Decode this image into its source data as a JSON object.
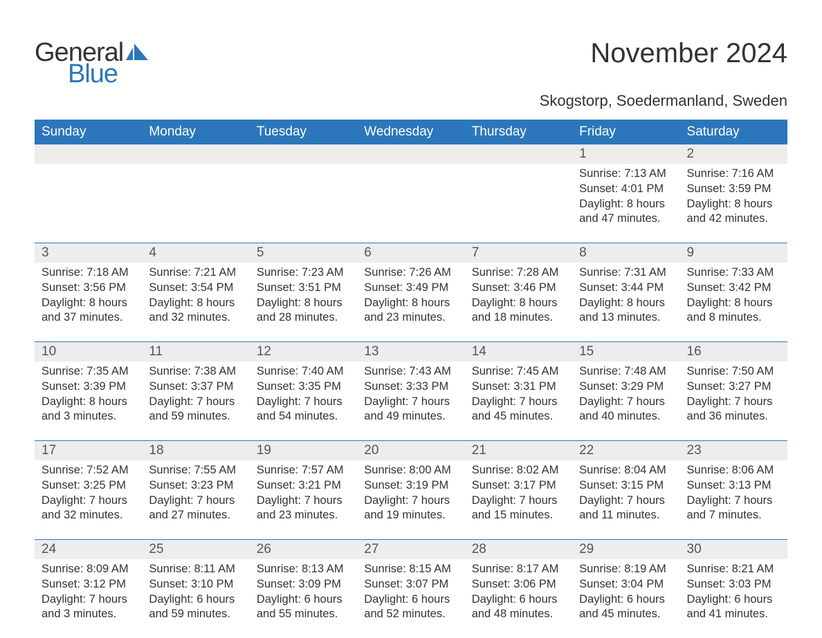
{
  "brand": {
    "text1": "General",
    "text2": "Blue",
    "icon_color": "#2c77bb"
  },
  "title": "November 2024",
  "subtitle": "Skogstorp, Soedermanland, Sweden",
  "colors": {
    "header_bg": "#2c77bb",
    "header_text": "#ffffff",
    "daynum_bg": "#ededed",
    "body_text": "#333333",
    "page_bg": "#ffffff",
    "row_border": "#2c77bb"
  },
  "fontsizes": {
    "title": 40,
    "subtitle": 22,
    "dow": 19,
    "daynum": 19,
    "dayinfo": 16.5,
    "logo": 38
  },
  "dow": [
    "Sunday",
    "Monday",
    "Tuesday",
    "Wednesday",
    "Thursday",
    "Friday",
    "Saturday"
  ],
  "weeks": [
    [
      {
        "n": "",
        "sunrise": "",
        "sunset": "",
        "daylight1": "",
        "daylight2": ""
      },
      {
        "n": "",
        "sunrise": "",
        "sunset": "",
        "daylight1": "",
        "daylight2": ""
      },
      {
        "n": "",
        "sunrise": "",
        "sunset": "",
        "daylight1": "",
        "daylight2": ""
      },
      {
        "n": "",
        "sunrise": "",
        "sunset": "",
        "daylight1": "",
        "daylight2": ""
      },
      {
        "n": "",
        "sunrise": "",
        "sunset": "",
        "daylight1": "",
        "daylight2": ""
      },
      {
        "n": "1",
        "sunrise": "Sunrise: 7:13 AM",
        "sunset": "Sunset: 4:01 PM",
        "daylight1": "Daylight: 8 hours",
        "daylight2": "and 47 minutes."
      },
      {
        "n": "2",
        "sunrise": "Sunrise: 7:16 AM",
        "sunset": "Sunset: 3:59 PM",
        "daylight1": "Daylight: 8 hours",
        "daylight2": "and 42 minutes."
      }
    ],
    [
      {
        "n": "3",
        "sunrise": "Sunrise: 7:18 AM",
        "sunset": "Sunset: 3:56 PM",
        "daylight1": "Daylight: 8 hours",
        "daylight2": "and 37 minutes."
      },
      {
        "n": "4",
        "sunrise": "Sunrise: 7:21 AM",
        "sunset": "Sunset: 3:54 PM",
        "daylight1": "Daylight: 8 hours",
        "daylight2": "and 32 minutes."
      },
      {
        "n": "5",
        "sunrise": "Sunrise: 7:23 AM",
        "sunset": "Sunset: 3:51 PM",
        "daylight1": "Daylight: 8 hours",
        "daylight2": "and 28 minutes."
      },
      {
        "n": "6",
        "sunrise": "Sunrise: 7:26 AM",
        "sunset": "Sunset: 3:49 PM",
        "daylight1": "Daylight: 8 hours",
        "daylight2": "and 23 minutes."
      },
      {
        "n": "7",
        "sunrise": "Sunrise: 7:28 AM",
        "sunset": "Sunset: 3:46 PM",
        "daylight1": "Daylight: 8 hours",
        "daylight2": "and 18 minutes."
      },
      {
        "n": "8",
        "sunrise": "Sunrise: 7:31 AM",
        "sunset": "Sunset: 3:44 PM",
        "daylight1": "Daylight: 8 hours",
        "daylight2": "and 13 minutes."
      },
      {
        "n": "9",
        "sunrise": "Sunrise: 7:33 AM",
        "sunset": "Sunset: 3:42 PM",
        "daylight1": "Daylight: 8 hours",
        "daylight2": "and 8 minutes."
      }
    ],
    [
      {
        "n": "10",
        "sunrise": "Sunrise: 7:35 AM",
        "sunset": "Sunset: 3:39 PM",
        "daylight1": "Daylight: 8 hours",
        "daylight2": "and 3 minutes."
      },
      {
        "n": "11",
        "sunrise": "Sunrise: 7:38 AM",
        "sunset": "Sunset: 3:37 PM",
        "daylight1": "Daylight: 7 hours",
        "daylight2": "and 59 minutes."
      },
      {
        "n": "12",
        "sunrise": "Sunrise: 7:40 AM",
        "sunset": "Sunset: 3:35 PM",
        "daylight1": "Daylight: 7 hours",
        "daylight2": "and 54 minutes."
      },
      {
        "n": "13",
        "sunrise": "Sunrise: 7:43 AM",
        "sunset": "Sunset: 3:33 PM",
        "daylight1": "Daylight: 7 hours",
        "daylight2": "and 49 minutes."
      },
      {
        "n": "14",
        "sunrise": "Sunrise: 7:45 AM",
        "sunset": "Sunset: 3:31 PM",
        "daylight1": "Daylight: 7 hours",
        "daylight2": "and 45 minutes."
      },
      {
        "n": "15",
        "sunrise": "Sunrise: 7:48 AM",
        "sunset": "Sunset: 3:29 PM",
        "daylight1": "Daylight: 7 hours",
        "daylight2": "and 40 minutes."
      },
      {
        "n": "16",
        "sunrise": "Sunrise: 7:50 AM",
        "sunset": "Sunset: 3:27 PM",
        "daylight1": "Daylight: 7 hours",
        "daylight2": "and 36 minutes."
      }
    ],
    [
      {
        "n": "17",
        "sunrise": "Sunrise: 7:52 AM",
        "sunset": "Sunset: 3:25 PM",
        "daylight1": "Daylight: 7 hours",
        "daylight2": "and 32 minutes."
      },
      {
        "n": "18",
        "sunrise": "Sunrise: 7:55 AM",
        "sunset": "Sunset: 3:23 PM",
        "daylight1": "Daylight: 7 hours",
        "daylight2": "and 27 minutes."
      },
      {
        "n": "19",
        "sunrise": "Sunrise: 7:57 AM",
        "sunset": "Sunset: 3:21 PM",
        "daylight1": "Daylight: 7 hours",
        "daylight2": "and 23 minutes."
      },
      {
        "n": "20",
        "sunrise": "Sunrise: 8:00 AM",
        "sunset": "Sunset: 3:19 PM",
        "daylight1": "Daylight: 7 hours",
        "daylight2": "and 19 minutes."
      },
      {
        "n": "21",
        "sunrise": "Sunrise: 8:02 AM",
        "sunset": "Sunset: 3:17 PM",
        "daylight1": "Daylight: 7 hours",
        "daylight2": "and 15 minutes."
      },
      {
        "n": "22",
        "sunrise": "Sunrise: 8:04 AM",
        "sunset": "Sunset: 3:15 PM",
        "daylight1": "Daylight: 7 hours",
        "daylight2": "and 11 minutes."
      },
      {
        "n": "23",
        "sunrise": "Sunrise: 8:06 AM",
        "sunset": "Sunset: 3:13 PM",
        "daylight1": "Daylight: 7 hours",
        "daylight2": "and 7 minutes."
      }
    ],
    [
      {
        "n": "24",
        "sunrise": "Sunrise: 8:09 AM",
        "sunset": "Sunset: 3:12 PM",
        "daylight1": "Daylight: 7 hours",
        "daylight2": "and 3 minutes."
      },
      {
        "n": "25",
        "sunrise": "Sunrise: 8:11 AM",
        "sunset": "Sunset: 3:10 PM",
        "daylight1": "Daylight: 6 hours",
        "daylight2": "and 59 minutes."
      },
      {
        "n": "26",
        "sunrise": "Sunrise: 8:13 AM",
        "sunset": "Sunset: 3:09 PM",
        "daylight1": "Daylight: 6 hours",
        "daylight2": "and 55 minutes."
      },
      {
        "n": "27",
        "sunrise": "Sunrise: 8:15 AM",
        "sunset": "Sunset: 3:07 PM",
        "daylight1": "Daylight: 6 hours",
        "daylight2": "and 52 minutes."
      },
      {
        "n": "28",
        "sunrise": "Sunrise: 8:17 AM",
        "sunset": "Sunset: 3:06 PM",
        "daylight1": "Daylight: 6 hours",
        "daylight2": "and 48 minutes."
      },
      {
        "n": "29",
        "sunrise": "Sunrise: 8:19 AM",
        "sunset": "Sunset: 3:04 PM",
        "daylight1": "Daylight: 6 hours",
        "daylight2": "and 45 minutes."
      },
      {
        "n": "30",
        "sunrise": "Sunrise: 8:21 AM",
        "sunset": "Sunset: 3:03 PM",
        "daylight1": "Daylight: 6 hours",
        "daylight2": "and 41 minutes."
      }
    ]
  ]
}
